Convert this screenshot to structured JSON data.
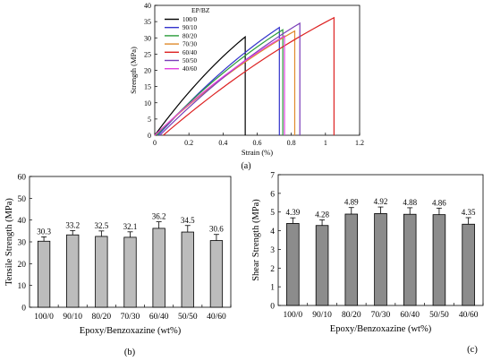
{
  "chart_data": [
    {
      "type": "line",
      "panel": "(a)",
      "xlabel": "Strain (%)",
      "ylabel": "Strength (MPa)",
      "xlim": [
        0,
        1.2
      ],
      "ylim": [
        0,
        40
      ],
      "xticks": [
        0,
        0.2,
        0.4,
        0.6,
        0.8,
        1,
        1.2
      ],
      "xtick_labels": [
        "0",
        "0.2",
        "0.4",
        "0.6",
        "0.8",
        "1",
        "1.2"
      ],
      "yticks": [
        0,
        5,
        10,
        15,
        20,
        25,
        30,
        35,
        40
      ],
      "ytick_labels": [
        "0",
        "5",
        "10",
        "15",
        "20",
        "25",
        "30",
        "35",
        "40"
      ],
      "legend_title": "EP/BZ",
      "legend_position": "top-left",
      "grid": false,
      "series": [
        {
          "name": "100/0",
          "color": "#000000",
          "x": [
            0.0,
            0.53,
            0.53
          ],
          "y": [
            0.0,
            30.3,
            0.0
          ]
        },
        {
          "name": "90/10",
          "color": "#3333cc",
          "x": [
            0.02,
            0.73,
            0.73
          ],
          "y": [
            0.0,
            33.2,
            0.0
          ]
        },
        {
          "name": "80/20",
          "color": "#2a9d3a",
          "x": [
            0.01,
            0.75,
            0.75
          ],
          "y": [
            0.0,
            32.5,
            0.0
          ]
        },
        {
          "name": "70/30",
          "color": "#e08a2c",
          "x": [
            0.0,
            0.82,
            0.82
          ],
          "y": [
            0.0,
            32.1,
            0.0
          ]
        },
        {
          "name": "60/40",
          "color": "#dd2222",
          "x": [
            0.05,
            1.05,
            1.05
          ],
          "y": [
            0.0,
            36.2,
            0.0
          ]
        },
        {
          "name": "50/50",
          "color": "#7a3db8",
          "x": [
            0.03,
            0.85,
            0.85
          ],
          "y": [
            0.0,
            34.5,
            0.0
          ]
        },
        {
          "name": "40/60",
          "color": "#e040e0",
          "x": [
            0.0,
            0.76,
            0.76
          ],
          "y": [
            0.0,
            30.6,
            0.0
          ]
        }
      ]
    },
    {
      "type": "bar",
      "panel": "(b)",
      "xlabel": "Epoxy/Benzoxazine (wt%)",
      "ylabel": "Tensile Strength (MPa)",
      "categories": [
        "100/0",
        "90/10",
        "80/20",
        "70/30",
        "60/40",
        "50/50",
        "40/60"
      ],
      "values": [
        30.3,
        33.2,
        32.5,
        32.1,
        36.2,
        34.5,
        30.6
      ],
      "value_labels": [
        "30.3",
        "33.2",
        "32.5",
        "32.1",
        "36.2",
        "34.5",
        "30.6"
      ],
      "errors": [
        2.0,
        2.0,
        2.5,
        2.5,
        3.0,
        3.0,
        2.8
      ],
      "ylim": [
        0,
        60
      ],
      "yticks": [
        0,
        10,
        20,
        30,
        40,
        50,
        60
      ],
      "ytick_labels": [
        "0",
        "10",
        "20",
        "30",
        "40",
        "50",
        "60"
      ],
      "bar_color": "#bcbcbc",
      "grid": false
    },
    {
      "type": "bar",
      "panel": "(c)",
      "xlabel": "Epoxy/Benzoxazine (wt%)",
      "ylabel": "Shear Strength (MPa)",
      "categories": [
        "100/0",
        "90/10",
        "80/20",
        "70/30",
        "60/40",
        "50/50",
        "40/60"
      ],
      "values": [
        4.39,
        4.28,
        4.89,
        4.92,
        4.88,
        4.86,
        4.35
      ],
      "value_labels": [
        "4.39",
        "4.28",
        "4.89",
        "4.92",
        "4.88",
        "4.86",
        "4.35"
      ],
      "errors": [
        0.3,
        0.3,
        0.35,
        0.35,
        0.35,
        0.35,
        0.35
      ],
      "ylim": [
        0,
        7
      ],
      "yticks": [
        0,
        1,
        2,
        3,
        4,
        5,
        6,
        7
      ],
      "ytick_labels": [
        "0",
        "1",
        "2",
        "3",
        "4",
        "5",
        "6",
        "7"
      ],
      "bar_color": "#8c8c8c",
      "grid": false
    }
  ]
}
